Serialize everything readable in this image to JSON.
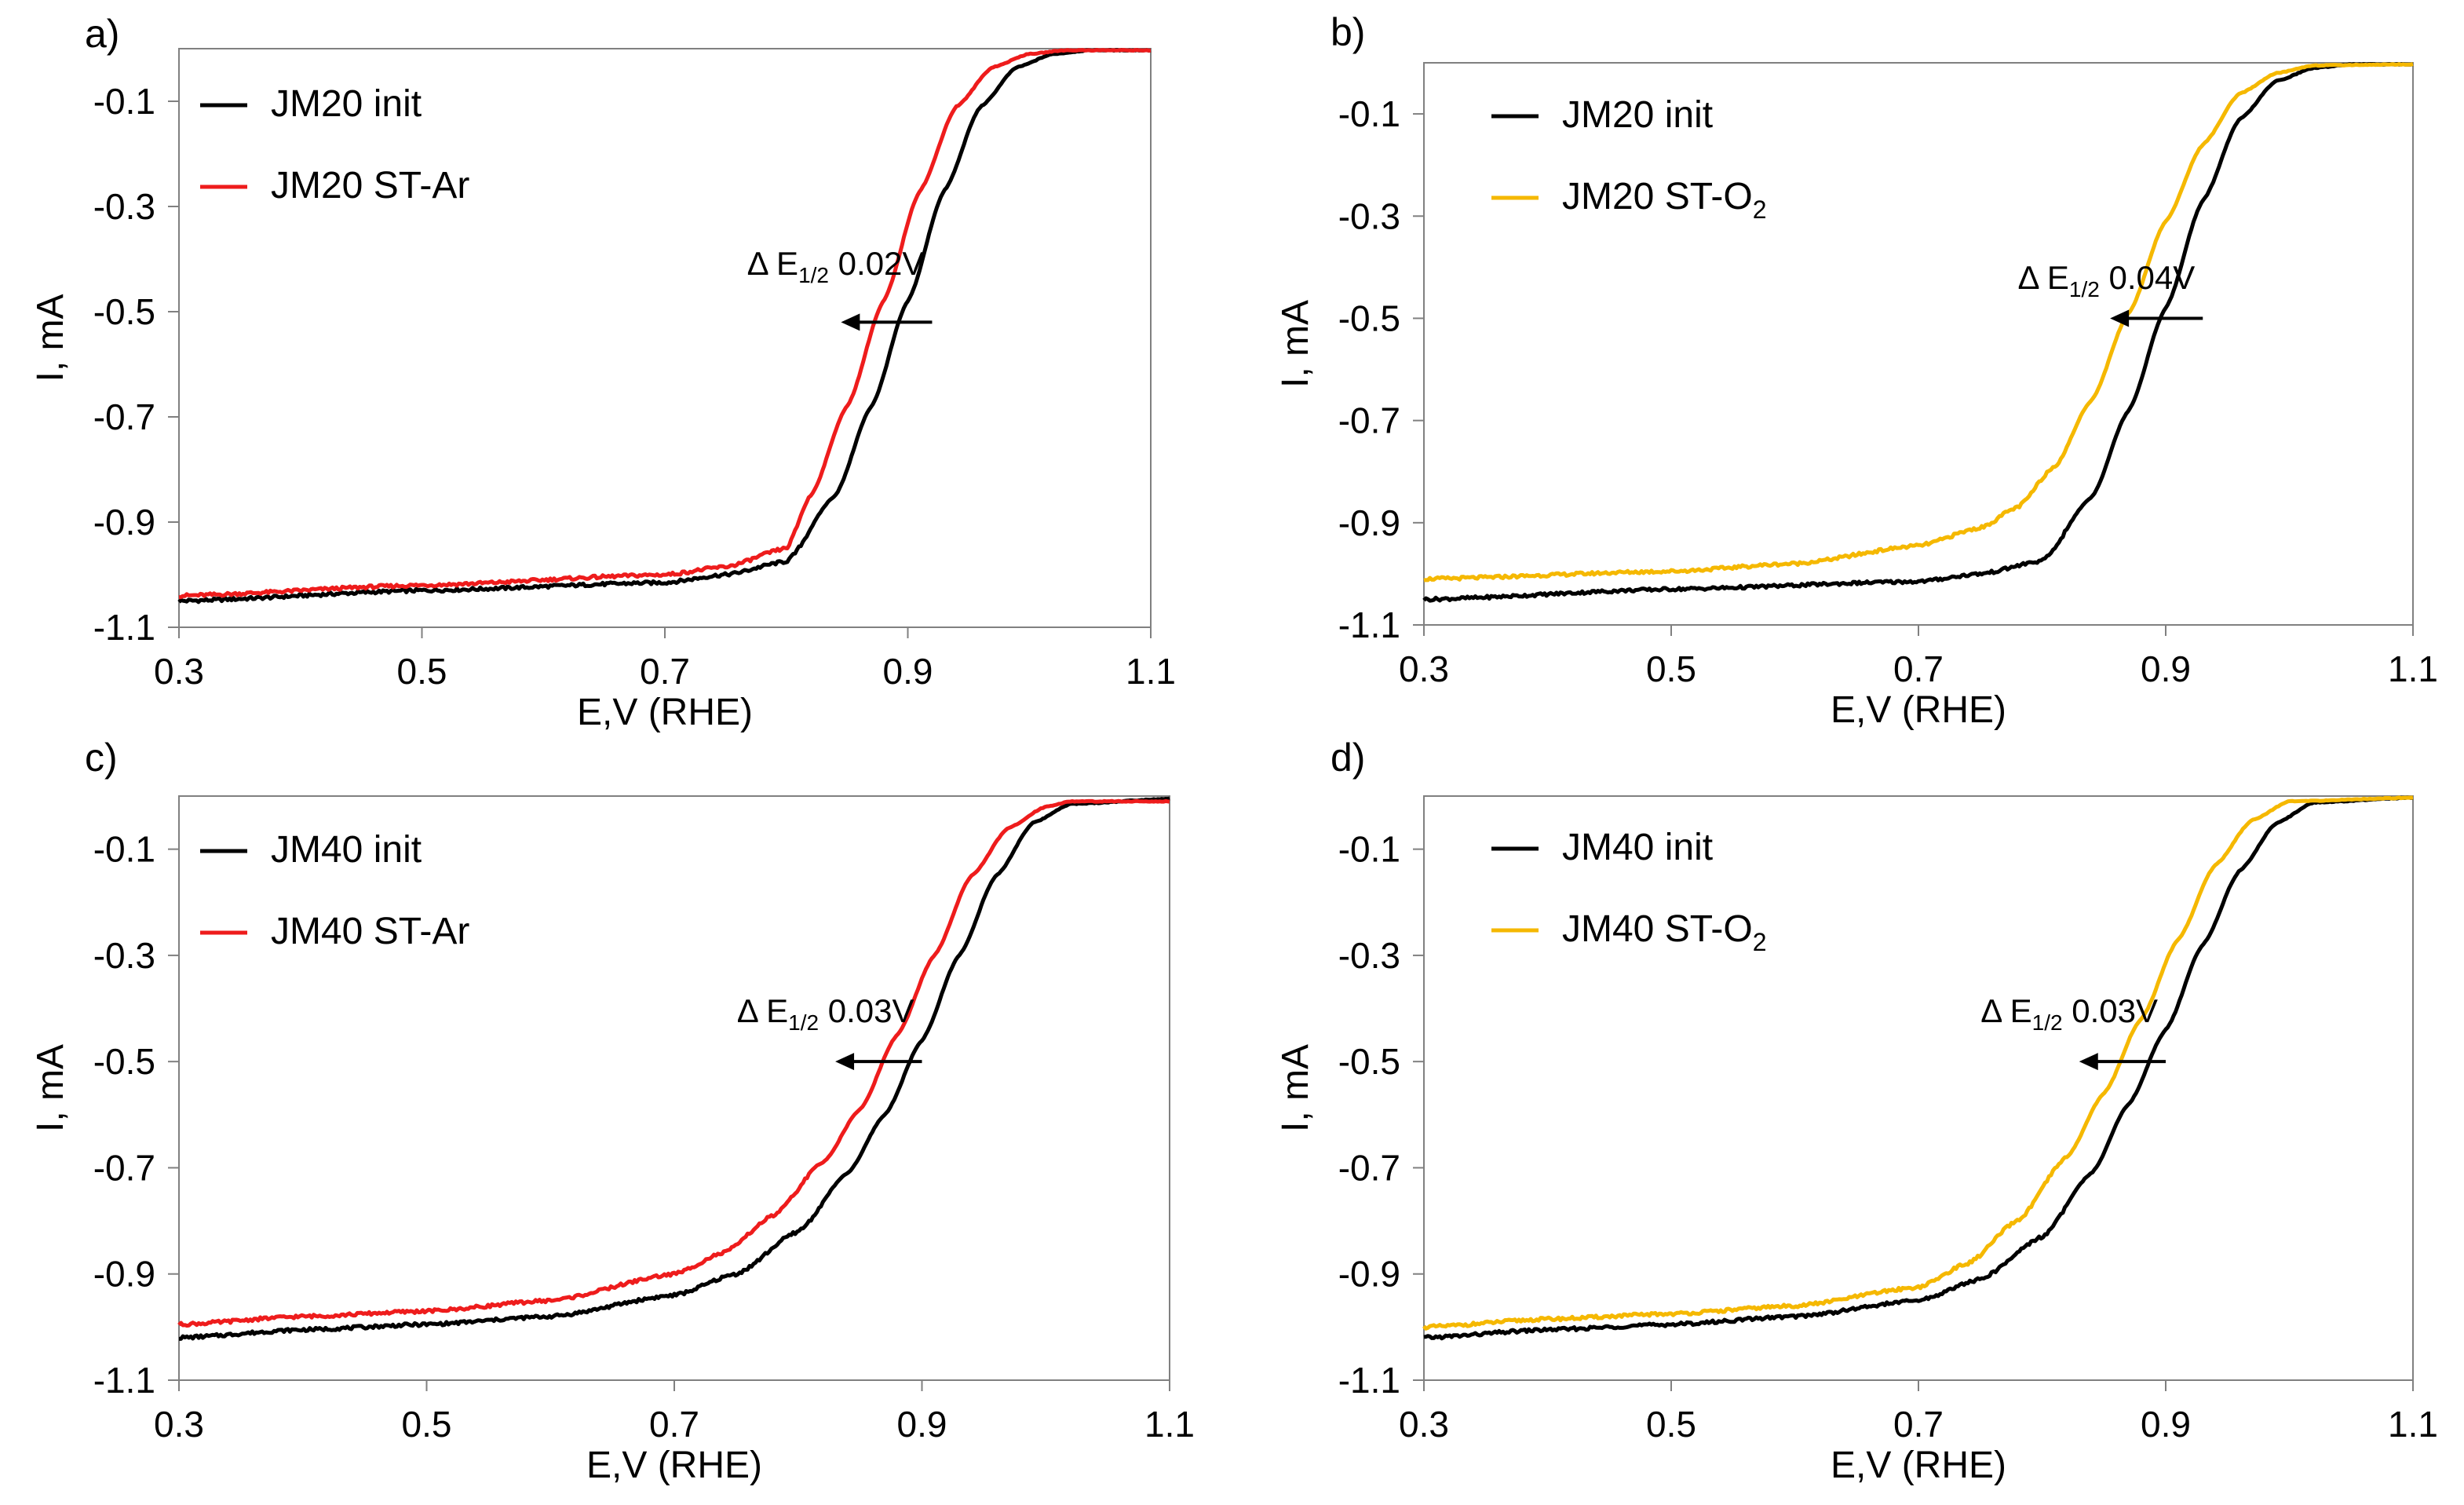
{
  "figure": {
    "x_ticks": [
      "0.3",
      "0.5",
      "0.7",
      "0.9",
      "1.1"
    ],
    "y_ticks": [
      "-0.1",
      "-0.3",
      "-0.5",
      "-0.7",
      "-0.9",
      "-1.1"
    ],
    "colors": {
      "init": "#000000",
      "st_ar": "#ee1c1c",
      "st_o2": "#f5b800"
    }
  },
  "chart_data": [
    {
      "type": "line",
      "panel_label": "a)",
      "xlabel": "E,V (RHE)",
      "ylabel": "I, mA",
      "xlim": [
        0.3,
        1.1
      ],
      "ylim": [
        -1.1,
        0.0
      ],
      "x_ticks": [
        0.3,
        0.5,
        0.7,
        0.9,
        1.1
      ],
      "y_ticks": [
        -0.1,
        -0.3,
        -0.5,
        -0.7,
        -0.9,
        -1.1
      ],
      "legend_position": "top-left",
      "series": [
        {
          "name": "JM20 init",
          "label_main": "JM20 init",
          "label_sub": "",
          "color": "#000000",
          "x": [
            0.3,
            0.5,
            0.7,
            0.75,
            0.8,
            0.84,
            0.87,
            0.9,
            0.93,
            0.96,
            0.99,
            1.02,
            1.05,
            1.1
          ],
          "y": [
            -1.05,
            -1.03,
            -1.015,
            -1.0,
            -0.975,
            -0.85,
            -0.68,
            -0.48,
            -0.27,
            -0.11,
            -0.035,
            -0.01,
            -0.003,
            -0.003
          ]
        },
        {
          "name": "JM20 ST-Ar",
          "label_main": "JM20 ST-Ar",
          "label_sub": "",
          "color": "#ee1c1c",
          "x": [
            0.3,
            0.5,
            0.7,
            0.75,
            0.8,
            0.82,
            0.85,
            0.88,
            0.91,
            0.94,
            0.97,
            1.0,
            1.03,
            1.1
          ],
          "y": [
            -1.04,
            -1.02,
            -1.0,
            -0.985,
            -0.95,
            -0.85,
            -0.68,
            -0.48,
            -0.27,
            -0.11,
            -0.035,
            -0.01,
            -0.003,
            -0.003
          ]
        }
      ],
      "annotation": {
        "main": "Δ E",
        "sub": "1/2",
        "value": " 0.02V",
        "arrow_from": 0.92,
        "arrow_to": 0.845,
        "arrow_y": -0.52
      }
    },
    {
      "type": "line",
      "panel_label": "b)",
      "xlabel": "E,V (RHE)",
      "ylabel": "I, mA",
      "xlim": [
        0.3,
        1.1
      ],
      "ylim": [
        -1.1,
        0.0
      ],
      "x_ticks": [
        0.3,
        0.5,
        0.7,
        0.9,
        1.1
      ],
      "y_ticks": [
        -0.1,
        -0.3,
        -0.5,
        -0.7,
        -0.9,
        -1.1
      ],
      "legend_position": "top-left",
      "series": [
        {
          "name": "JM20 init",
          "label_main": "JM20 init",
          "label_sub": "",
          "color": "#000000",
          "x": [
            0.3,
            0.5,
            0.7,
            0.75,
            0.8,
            0.84,
            0.87,
            0.9,
            0.93,
            0.96,
            0.99,
            1.02,
            1.05,
            1.1
          ],
          "y": [
            -1.05,
            -1.03,
            -1.015,
            -1.0,
            -0.975,
            -0.85,
            -0.68,
            -0.48,
            -0.27,
            -0.11,
            -0.035,
            -0.01,
            -0.003,
            -0.003
          ]
        },
        {
          "name": "JM20 ST-O2",
          "label_main": "JM20 ST-O",
          "label_sub": "2",
          "color": "#f5b800",
          "x": [
            0.3,
            0.5,
            0.6,
            0.7,
            0.75,
            0.78,
            0.81,
            0.84,
            0.87,
            0.9,
            0.93,
            0.96,
            0.99,
            1.02,
            1.1
          ],
          "y": [
            -1.01,
            -0.995,
            -0.98,
            -0.945,
            -0.91,
            -0.87,
            -0.79,
            -0.66,
            -0.49,
            -0.31,
            -0.16,
            -0.06,
            -0.02,
            -0.005,
            -0.003
          ]
        }
      ],
      "annotation": {
        "main": "Δ E",
        "sub": "1/2",
        "value": " 0.04V",
        "arrow_from": 0.93,
        "arrow_to": 0.855,
        "arrow_y": -0.5
      }
    },
    {
      "type": "line",
      "panel_label": "c)",
      "xlabel": "E,V (RHE)",
      "ylabel": "I, mA",
      "xlim": [
        0.3,
        1.1
      ],
      "ylim": [
        -1.1,
        0.0
      ],
      "x_ticks": [
        0.3,
        0.5,
        0.7,
        0.9,
        1.1
      ],
      "y_ticks": [
        -0.1,
        -0.3,
        -0.5,
        -0.7,
        -0.9,
        -1.1
      ],
      "legend_position": "top-left",
      "series": [
        {
          "name": "JM40 init",
          "label_main": "JM40 init",
          "label_sub": "",
          "color": "#000000",
          "x": [
            0.3,
            0.4,
            0.5,
            0.6,
            0.7,
            0.75,
            0.8,
            0.84,
            0.87,
            0.9,
            0.93,
            0.96,
            0.99,
            1.02,
            1.1
          ],
          "y": [
            -1.02,
            -1.005,
            -0.995,
            -0.98,
            -0.94,
            -0.9,
            -0.82,
            -0.71,
            -0.6,
            -0.46,
            -0.3,
            -0.15,
            -0.05,
            -0.015,
            -0.005
          ]
        },
        {
          "name": "JM40 ST-Ar",
          "label_main": "JM40 ST-Ar",
          "label_sub": "",
          "color": "#ee1c1c",
          "x": [
            0.3,
            0.4,
            0.5,
            0.6,
            0.7,
            0.74,
            0.78,
            0.82,
            0.85,
            0.88,
            0.91,
            0.94,
            0.97,
            1.0,
            1.02,
            1.1
          ],
          "y": [
            -0.995,
            -0.98,
            -0.97,
            -0.95,
            -0.9,
            -0.86,
            -0.79,
            -0.69,
            -0.59,
            -0.45,
            -0.3,
            -0.15,
            -0.06,
            -0.02,
            -0.01,
            -0.01
          ]
        }
      ],
      "annotation": {
        "main": "Δ E",
        "sub": "1/2",
        "value": " 0.03V",
        "arrow_from": 0.9,
        "arrow_to": 0.83,
        "arrow_y": -0.5
      }
    },
    {
      "type": "line",
      "panel_label": "d)",
      "xlabel": "E,V (RHE)",
      "ylabel": "I, mA",
      "xlim": [
        0.3,
        1.1
      ],
      "ylim": [
        -1.1,
        0.0
      ],
      "x_ticks": [
        0.3,
        0.5,
        0.7,
        0.9,
        1.1
      ],
      "y_ticks": [
        -0.1,
        -0.3,
        -0.5,
        -0.7,
        -0.9,
        -1.1
      ],
      "legend_position": "top-left",
      "series": [
        {
          "name": "JM40 init",
          "label_main": "JM40 init",
          "label_sub": "",
          "color": "#000000",
          "x": [
            0.3,
            0.4,
            0.5,
            0.6,
            0.7,
            0.75,
            0.8,
            0.84,
            0.87,
            0.9,
            0.93,
            0.96,
            0.99,
            1.02,
            1.1
          ],
          "y": [
            -1.02,
            -1.005,
            -0.995,
            -0.98,
            -0.95,
            -0.91,
            -0.83,
            -0.71,
            -0.58,
            -0.44,
            -0.28,
            -0.14,
            -0.05,
            -0.012,
            -0.003
          ]
        },
        {
          "name": "JM40 ST-O2",
          "label_main": "JM40 ST-O",
          "label_sub": "2",
          "color": "#f5b800",
          "x": [
            0.3,
            0.4,
            0.5,
            0.6,
            0.7,
            0.74,
            0.78,
            0.82,
            0.85,
            0.88,
            0.91,
            0.94,
            0.97,
            1.0,
            1.1
          ],
          "y": [
            -1.0,
            -0.985,
            -0.975,
            -0.96,
            -0.925,
            -0.88,
            -0.8,
            -0.68,
            -0.56,
            -0.42,
            -0.27,
            -0.13,
            -0.045,
            -0.01,
            -0.003
          ]
        }
      ],
      "annotation": {
        "main": "Δ E",
        "sub": "1/2",
        "value": " 0.03V",
        "arrow_from": 0.9,
        "arrow_to": 0.83,
        "arrow_y": -0.5
      }
    }
  ]
}
